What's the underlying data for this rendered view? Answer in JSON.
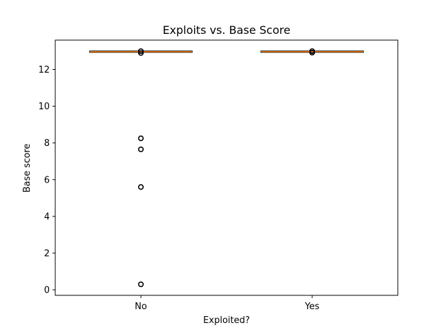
{
  "chart_data": {
    "type": "box",
    "title": "Exploits vs. Base Score",
    "xlabel": "Exploited?",
    "ylabel": "Base score",
    "categories": [
      "No",
      "Yes"
    ],
    "ylim": [
      -0.3,
      13.6
    ],
    "yticks": [
      0,
      2,
      4,
      6,
      8,
      10,
      12
    ],
    "grid": false,
    "boxes": [
      {
        "category": "No",
        "whisker_low": 12.97,
        "q1": 12.97,
        "median": 12.97,
        "q3": 12.97,
        "whisker_high": 12.97,
        "outliers": [
          12.9,
          13.0,
          8.25,
          7.65,
          5.6,
          0.3
        ]
      },
      {
        "category": "Yes",
        "whisker_low": 12.97,
        "q1": 12.97,
        "median": 12.97,
        "q3": 12.97,
        "whisker_high": 12.97,
        "outliers": [
          12.92,
          13.0
        ]
      }
    ],
    "colors": {
      "box": "#000000",
      "median": "#ff7f0e",
      "outlier": "#000000"
    }
  }
}
